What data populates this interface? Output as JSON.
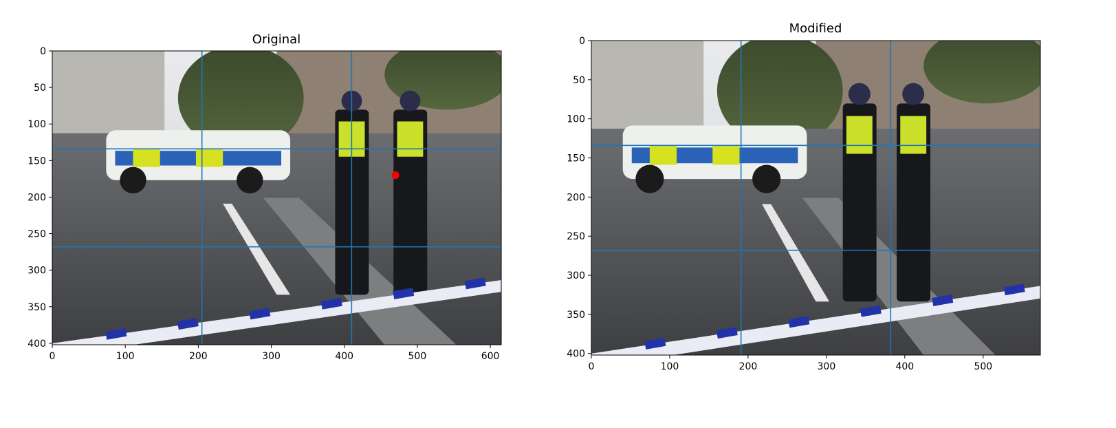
{
  "chart_data": [
    {
      "type": "image",
      "title": "Original",
      "xlabel": "",
      "ylabel": "",
      "image_width": 615,
      "image_height": 402,
      "xlim": [
        0,
        615
      ],
      "ylim": [
        402,
        0
      ],
      "xticks": [
        0,
        100,
        200,
        300,
        400,
        500,
        600
      ],
      "yticks": [
        0,
        50,
        100,
        150,
        200,
        250,
        300,
        350,
        400
      ],
      "vlines": [
        205,
        410
      ],
      "hlines": [
        134,
        268
      ],
      "points": [
        {
          "x": 470,
          "y": 170,
          "color": "#ff0000"
        }
      ],
      "colors": {
        "grid": "#1f77b4",
        "marker": "#ff0000"
      }
    },
    {
      "type": "image",
      "title": "Modified",
      "xlabel": "",
      "ylabel": "",
      "image_width": 573,
      "image_height": 402,
      "xlim": [
        0,
        573
      ],
      "ylim": [
        402,
        0
      ],
      "xticks": [
        0,
        100,
        200,
        300,
        400,
        500
      ],
      "yticks": [
        0,
        50,
        100,
        150,
        200,
        250,
        300,
        350,
        400
      ],
      "vlines": [
        191,
        382
      ],
      "hlines": [
        134,
        268
      ],
      "points": [],
      "colors": {
        "grid": "#1f77b4"
      }
    }
  ]
}
